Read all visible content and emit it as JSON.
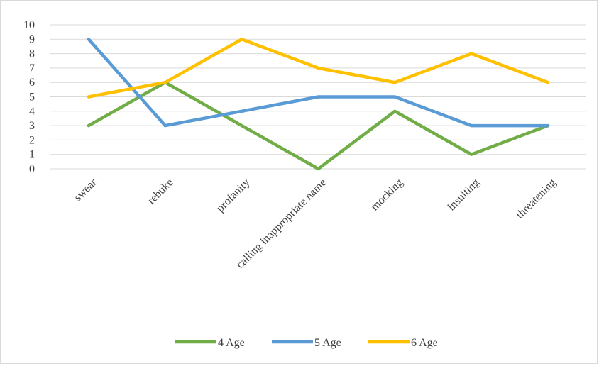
{
  "chart_data": {
    "type": "line",
    "categories": [
      "swear",
      "rebuke",
      "profanity",
      "calling inappropriate name",
      "mocking",
      "insulting",
      "threatening"
    ],
    "series": [
      {
        "name": "4 Age",
        "color": "#70ad47",
        "values": [
          3,
          6,
          3,
          0,
          4,
          1,
          3
        ]
      },
      {
        "name": "5 Age",
        "color": "#5b9bd5",
        "values": [
          9,
          3,
          4,
          5,
          5,
          3,
          3
        ]
      },
      {
        "name": "6 Age",
        "color": "#ffc000",
        "values": [
          5,
          6,
          9,
          7,
          6,
          8,
          6
        ]
      }
    ],
    "yticks": [
      "0",
      "1",
      "2",
      "3",
      "4",
      "5",
      "6",
      "7",
      "8",
      "9",
      "10"
    ],
    "ylim": [
      0,
      10
    ],
    "grid": true,
    "legend_position": "bottom"
  }
}
